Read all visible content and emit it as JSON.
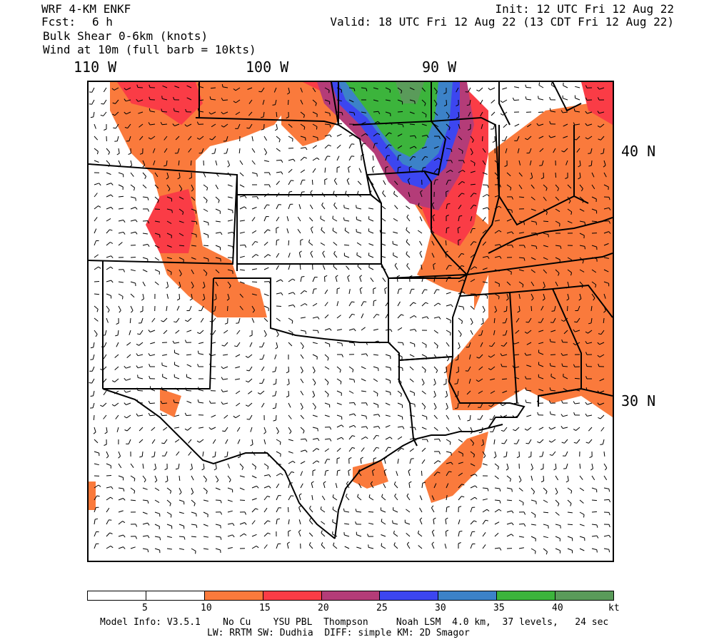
{
  "header": {
    "model": "WRF 4-KM ENKF",
    "fcst_label": "Fcst:",
    "fcst_value": "6 h",
    "field1": "Bulk Shear 0-6km (knots)",
    "field2": "Wind at 10m (full barb = 10kts)",
    "init": "Init: 12 UTC Fri 12 Aug 22",
    "valid": "Valid: 18 UTC Fri 12 Aug 22 (13 CDT Fri 12 Aug 22)"
  },
  "longitudes": [
    "110 W",
    "100 W",
    "90 W"
  ],
  "latitudes": [
    "40 N",
    "30 N"
  ],
  "colorbar": {
    "colors": [
      "#ffffff",
      "#ffffff",
      "#fa7a3c",
      "#fa3c46",
      "#b43c78",
      "#3c46f0",
      "#3c82c8",
      "#3cb43c",
      "#5a9b5a"
    ],
    "labels": [
      "5",
      "10",
      "15",
      "20",
      "25",
      "30",
      "35",
      "40",
      "kt"
    ]
  },
  "info": {
    "line1": "Model Info: V3.5.1    No Cu    YSU PBL  Thompson     Noah LSM  4.0 km,  37 levels,   24 sec",
    "line2": "LW: RRTM SW: Dudhia  DIFF: simple KM: 2D Smagor"
  }
}
